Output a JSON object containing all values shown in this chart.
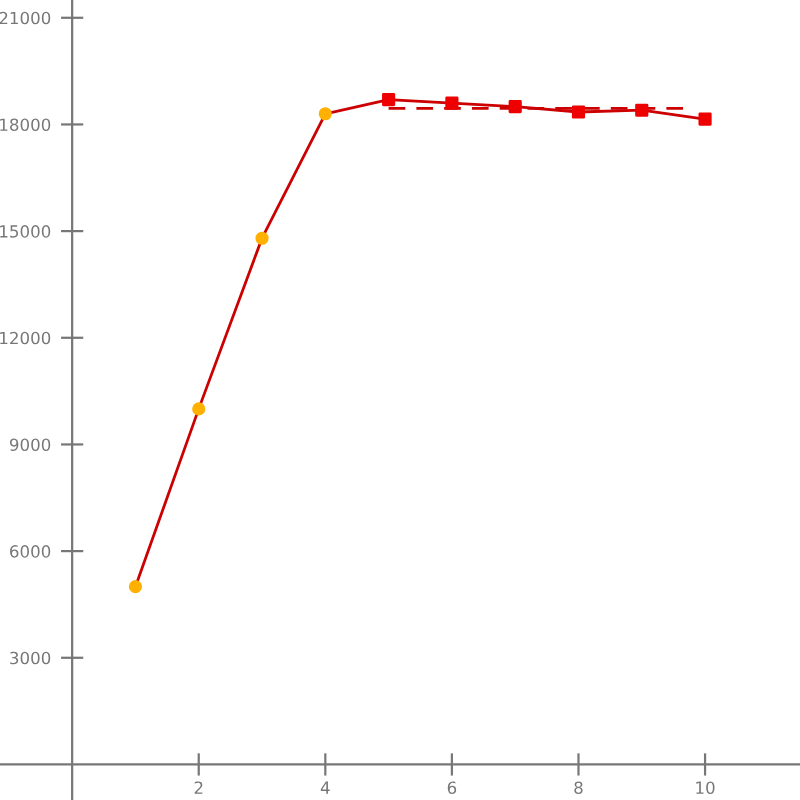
{
  "chart_data": {
    "type": "line",
    "xlim": [
      -1.14,
      11.5
    ],
    "ylim": [
      -1000,
      21500
    ],
    "xticks": [
      2,
      4,
      6,
      8,
      10
    ],
    "yticks": [
      3000,
      6000,
      9000,
      12000,
      15000,
      18000,
      21000
    ],
    "grid": false,
    "series": [
      {
        "color": "#cc0000",
        "marker": "none",
        "line_style": "solid",
        "x": [
          1,
          2,
          3,
          4,
          5,
          6,
          7,
          8,
          9,
          10
        ],
        "values": [
          5000,
          10000,
          14800,
          18300,
          18700,
          18600,
          18500,
          18350,
          18400,
          18150
        ]
      },
      {
        "type": "scatter",
        "color": "#ffb000",
        "marker": "circle",
        "x": [
          1,
          2,
          3,
          4
        ],
        "values": [
          5000,
          10000,
          14800,
          18300
        ]
      },
      {
        "type": "scatter",
        "color": "#ee0000",
        "marker": "square",
        "x": [
          5,
          6,
          7,
          8,
          9,
          10
        ],
        "values": [
          18700,
          18600,
          18500,
          18350,
          18400,
          18150
        ]
      },
      {
        "color": "#cc0000",
        "marker": "none",
        "line_style": "dashed",
        "x": [
          5,
          9.8
        ],
        "values": [
          18450,
          18450
        ]
      }
    ]
  }
}
